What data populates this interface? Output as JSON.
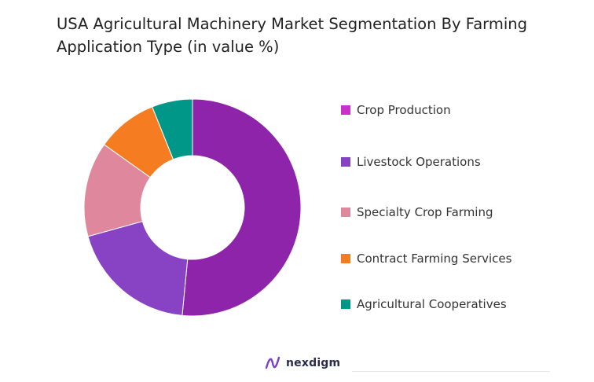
{
  "chart_data": {
    "type": "pie",
    "title": "USA Agricultural Machinery Market Segmentation By Farming Application Type (in value %)",
    "categories": [
      "Crop Production",
      "Livestock Operations",
      "Specialty Crop Farming",
      "Contract Farming Services",
      "Agricultural Cooperatives"
    ],
    "values": [
      51,
      19,
      14,
      9,
      6
    ],
    "colors": [
      "#8e24aa",
      "#8743c4",
      "#de879d",
      "#f57c20",
      "#009688"
    ],
    "legend_colors": [
      "#c832c8",
      "#8743c4",
      "#de879d",
      "#f57c20",
      "#009688"
    ],
    "donut": true,
    "legend_position": "right"
  },
  "brand": {
    "name": "nexdigm",
    "logo_icon": "nexdigm-logo-icon"
  }
}
